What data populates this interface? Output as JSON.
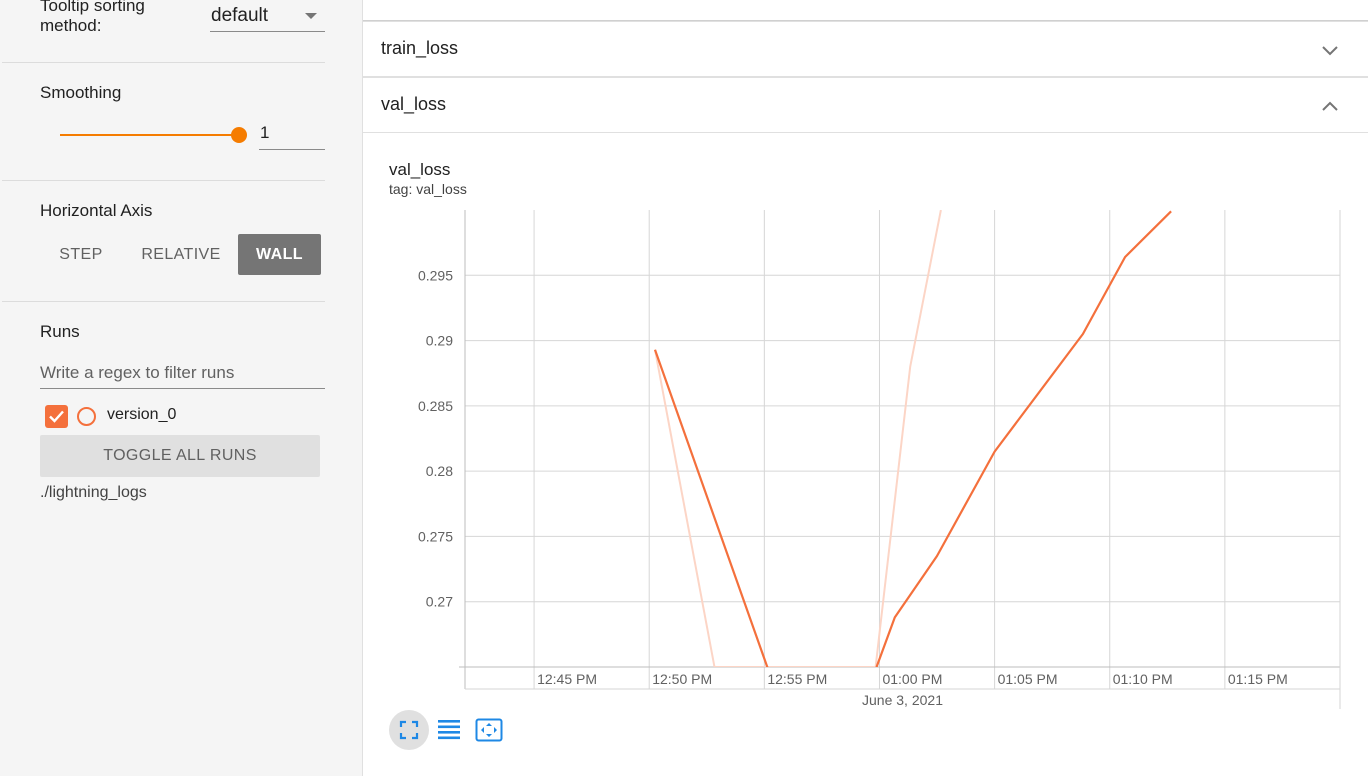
{
  "sidebar": {
    "tooltip_sorting_label": "Tooltip sorting method:",
    "tooltip_sorting_value": "default",
    "smoothing_label": "Smoothing",
    "smoothing_value": "1",
    "horizontal_axis_label": "Horizontal Axis",
    "axis_options": [
      "STEP",
      "RELATIVE",
      "WALL"
    ],
    "axis_selected": "WALL",
    "runs_label": "Runs",
    "runs_filter_placeholder": "Write a regex to filter runs",
    "runs": [
      {
        "name": "version_0",
        "checked": true
      }
    ],
    "toggle_all_label": "TOGGLE ALL RUNS",
    "logdir": "./lightning_logs"
  },
  "main": {
    "panes": [
      {
        "title": "train_loss",
        "expanded": false
      },
      {
        "title": "val_loss",
        "expanded": true
      }
    ],
    "card": {
      "title": "val_loss",
      "tag": "tag: val_loss"
    }
  },
  "colors": {
    "accent": "#f57c00",
    "run": "#f4703c",
    "run_raw": "#fcd5c6",
    "wall_selected": "#757575",
    "tool_icon": "#1e88e5"
  },
  "icons": {
    "chevron_down": "chevron-down-icon",
    "chevron_up": "chevron-up-icon",
    "fullscreen": "fullscreen-icon",
    "log_scale": "log-scale-icon",
    "fit_domain": "fit-domain-icon",
    "check": "check-icon"
  },
  "chart_data": {
    "type": "line",
    "title": "val_loss",
    "subtitle": "tag: val_loss",
    "xlabel": "June 3, 2021",
    "ylabel": "",
    "x_type": "time",
    "x_ticks": [
      "12:45 PM",
      "12:50 PM",
      "12:55 PM",
      "01:00 PM",
      "01:05 PM",
      "01:10 PM",
      "01:15 PM"
    ],
    "y_ticks": [
      0.27,
      0.275,
      0.28,
      0.285,
      0.29,
      0.295
    ],
    "xlim": [
      "12:42 PM",
      "01:20 PM"
    ],
    "ylim": [
      0.265,
      0.3
    ],
    "grid": true,
    "series": [
      {
        "role": "smoothed",
        "x": [
          "12:50:15 PM",
          "12:55:10 PM",
          "12:59:50 PM",
          "01:00:40 PM",
          "01:02:30 PM",
          "01:05:00 PM",
          "01:08:50 PM",
          "01:10:40 PM",
          "01:12:40 PM"
        ],
        "y": [
          0.2893,
          0.2648,
          0.2648,
          0.2688,
          0.2735,
          0.2815,
          0.2905,
          0.2964,
          0.2999
        ]
      },
      {
        "role": "raw",
        "x": [
          "12:50:15 PM",
          "12:52:50 PM",
          "12:59:50 PM",
          "01:01:20 PM",
          "01:02:40 PM"
        ],
        "y": [
          0.2893,
          0.265,
          0.265,
          0.288,
          0.3
        ]
      }
    ]
  }
}
